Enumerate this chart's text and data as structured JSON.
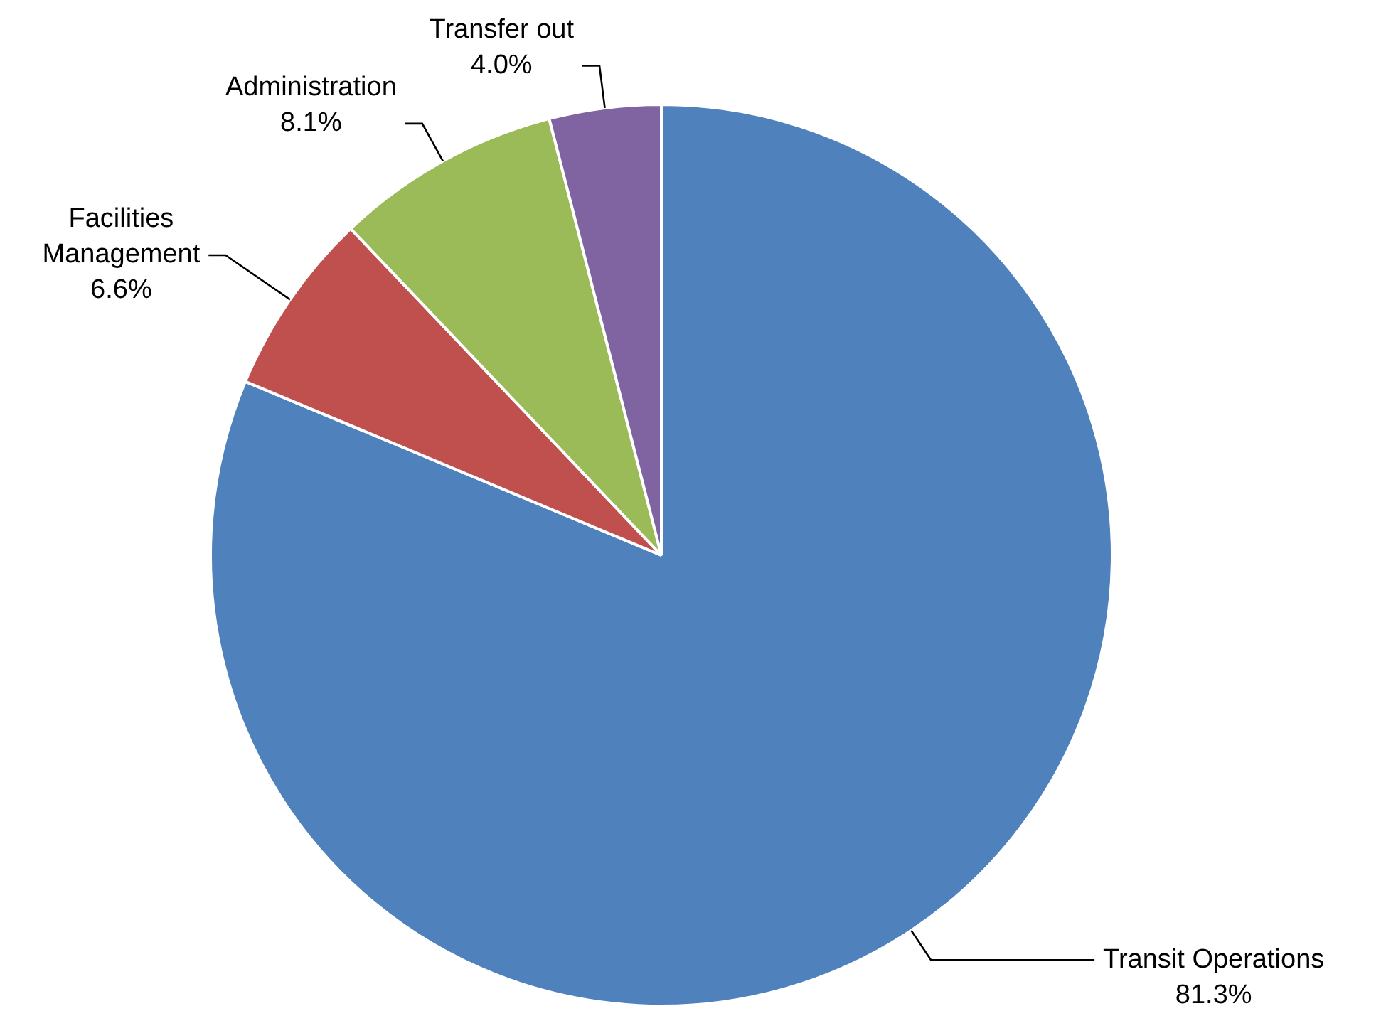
{
  "chart_data": {
    "type": "pie",
    "categories": [
      "Transit Operations",
      "Facilities Management",
      "Administration",
      "Transfer out"
    ],
    "values": [
      81.3,
      6.6,
      8.1,
      4.0
    ],
    "colors": [
      "#4f81bd",
      "#c0504d",
      "#9bbb59",
      "#8064a2"
    ],
    "value_labels": [
      "81.3%",
      "6.6%",
      "8.1%",
      "4.0%"
    ],
    "legend": false
  }
}
